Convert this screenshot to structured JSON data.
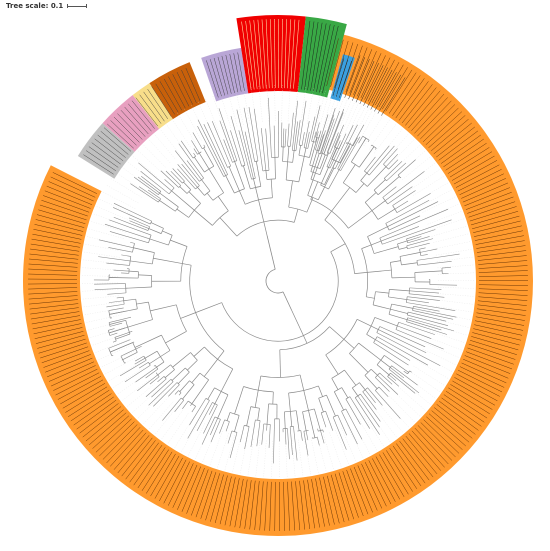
{
  "scale": {
    "label": "Tree scale: 0.1"
  },
  "colors": {
    "background": "#ffffff",
    "branch": "#8a8a8a",
    "leaf_text": "#5a2a00",
    "clades": {
      "orange": "#ff9a2e",
      "gray": "#c0c0c0",
      "pink": "#e8a0c0",
      "yellow": "#f8de8a",
      "brown": "#c8600a",
      "purple": "#b9a6d6",
      "red": "#f00000",
      "green": "#39a845",
      "blue": "#3aa0e0"
    }
  },
  "clade_order": [
    "orange",
    "gray",
    "pink",
    "yellow",
    "brown",
    "purple",
    "red",
    "green",
    "blue"
  ],
  "leaf_count_by_clade": {
    "orange": 250,
    "gray": 5,
    "pink": 7,
    "yellow": 3,
    "brown": 8,
    "purple": 9,
    "red": 16,
    "green": 9,
    "blue": 3
  }
}
